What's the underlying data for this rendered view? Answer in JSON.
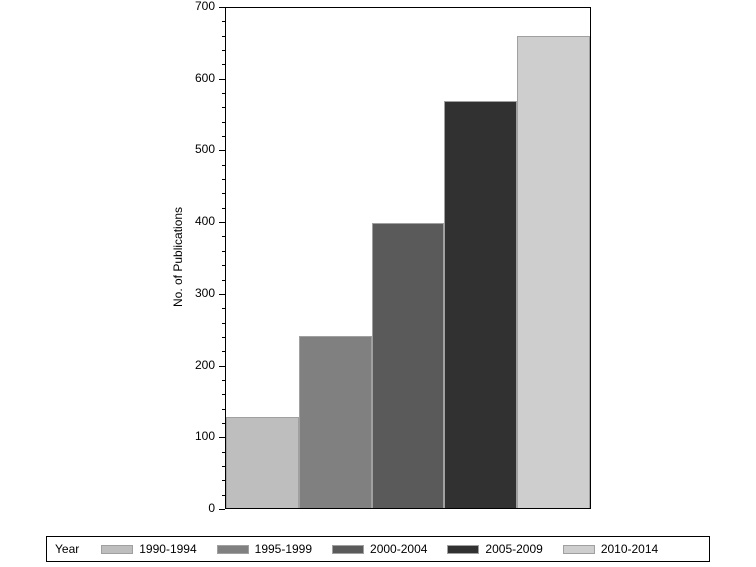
{
  "chart_data": {
    "type": "bar",
    "title": "",
    "xlabel": "",
    "ylabel": "No. of Publications",
    "ylim": [
      0,
      700
    ],
    "yticks": [
      0,
      100,
      200,
      300,
      400,
      500,
      600,
      700
    ],
    "minor_tick_step": 20,
    "grid": false,
    "legend_position": "bottom",
    "legend_title": "Year",
    "categories": [
      "1990-1994",
      "1995-1999",
      "2000-2004",
      "2005-2009",
      "2010-2014"
    ],
    "values": [
      127,
      240,
      397,
      568,
      658
    ],
    "colors": [
      "#bebebe",
      "#808080",
      "#5a5a5a",
      "#313131",
      "#cecece"
    ]
  }
}
